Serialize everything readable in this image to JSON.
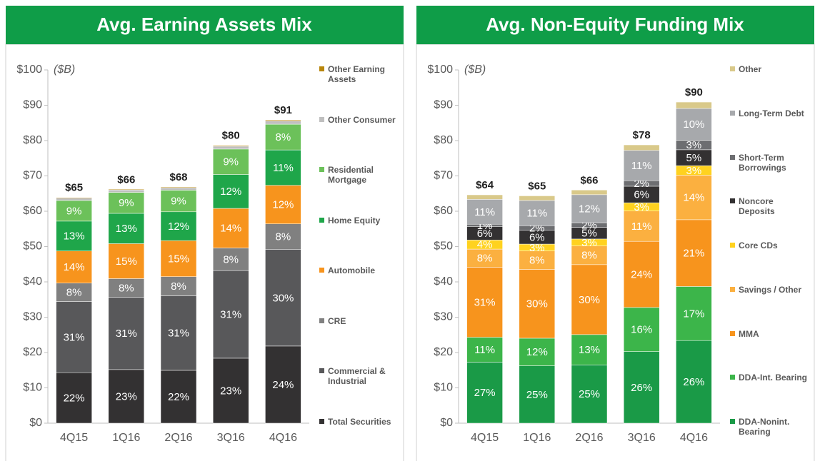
{
  "chart_data": [
    {
      "type": "bar",
      "stacked": true,
      "title": "Avg. Earning Assets Mix",
      "unit_label": "($B)",
      "categories": [
        "4Q15",
        "1Q16",
        "2Q16",
        "3Q16",
        "4Q16"
      ],
      "ylim": [
        0,
        100
      ],
      "yticks": [
        {
          "value": 0,
          "label": "$0"
        },
        {
          "value": 10,
          "label": "$10"
        },
        {
          "value": 20,
          "label": "$20"
        },
        {
          "value": 30,
          "label": "$30"
        },
        {
          "value": 40,
          "label": "$40"
        },
        {
          "value": 50,
          "label": "$50"
        },
        {
          "value": 60,
          "label": "$60"
        },
        {
          "value": 70,
          "label": "$70"
        },
        {
          "value": 80,
          "label": "$80"
        },
        {
          "value": 90,
          "label": "$90"
        },
        {
          "value": 100,
          "label": "$100"
        }
      ],
      "totals": {
        "values": [
          65,
          66,
          68,
          80,
          91
        ],
        "value_labels": [
          "$65",
          "$66",
          "$68",
          "$80",
          "$91"
        ]
      },
      "series": [
        {
          "name": "Total Securities",
          "color": "#333132",
          "values": [
            22,
            23,
            22,
            23,
            24
          ],
          "value_labels": [
            "22%",
            "23%",
            "22%",
            "23%",
            "24%"
          ]
        },
        {
          "name": "Commercial & Industrial",
          "color": "#58585a",
          "values": [
            31,
            31,
            31,
            31,
            30
          ],
          "value_labels": [
            "31%",
            "31%",
            "31%",
            "31%",
            "30%"
          ]
        },
        {
          "name": "CRE",
          "color": "#808080",
          "values": [
            8,
            8,
            8,
            8,
            8
          ],
          "value_labels": [
            "8%",
            "8%",
            "8%",
            "8%",
            "8%"
          ]
        },
        {
          "name": "Automobile",
          "color": "#f7941d",
          "values": [
            14,
            15,
            15,
            14,
            12
          ],
          "value_labels": [
            "14%",
            "15%",
            "15%",
            "14%",
            "12%"
          ]
        },
        {
          "name": "Home Equity",
          "color": "#1fa64a",
          "values": [
            13,
            13,
            12,
            12,
            11
          ],
          "value_labels": [
            "13%",
            "13%",
            "12%",
            "12%",
            "11%"
          ]
        },
        {
          "name": "Residential Mortgage",
          "color": "#6cc15a",
          "values": [
            9,
            9,
            9,
            9,
            8
          ],
          "value_labels": [
            "9%",
            "9%",
            "9%",
            "9%",
            "8%"
          ]
        },
        {
          "name": "Other Consumer",
          "color": "#bfbfbf",
          "values": [
            1,
            1,
            1,
            1,
            1
          ]
        },
        {
          "name": "Other Earning Assets",
          "color": "#b8860b",
          "values": [
            0.3,
            0.3,
            0.3,
            0.3,
            0.3
          ]
        }
      ]
    },
    {
      "type": "bar",
      "stacked": true,
      "title": "Avg. Non-Equity Funding Mix",
      "unit_label": "($B)",
      "categories": [
        "4Q15",
        "1Q16",
        "2Q16",
        "3Q16",
        "4Q16"
      ],
      "ylim": [
        0,
        100
      ],
      "yticks": [
        {
          "value": 0,
          "label": "$0"
        },
        {
          "value": 10,
          "label": "$10"
        },
        {
          "value": 20,
          "label": "$20"
        },
        {
          "value": 30,
          "label": "$30"
        },
        {
          "value": 40,
          "label": "$40"
        },
        {
          "value": 50,
          "label": "$50"
        },
        {
          "value": 60,
          "label": "$60"
        },
        {
          "value": 70,
          "label": "$70"
        },
        {
          "value": 80,
          "label": "$80"
        },
        {
          "value": 90,
          "label": "$90"
        },
        {
          "value": 100,
          "label": "$100"
        }
      ],
      "totals": {
        "values": [
          64,
          65,
          66,
          78,
          90
        ],
        "value_labels": [
          "$64",
          "$65",
          "$66",
          "$78",
          "$90"
        ]
      },
      "series": [
        {
          "name": "DDA-Nonint. Bearing",
          "color": "#1a9a47",
          "values": [
            27,
            25,
            25,
            26,
            26
          ],
          "value_labels": [
            "27%",
            "25%",
            "25%",
            "26%",
            "26%"
          ]
        },
        {
          "name": "DDA-Int. Bearing",
          "color": "#3cb54a",
          "values": [
            11,
            12,
            13,
            16,
            17
          ],
          "value_labels": [
            "11%",
            "12%",
            "13%",
            "16%",
            "17%"
          ]
        },
        {
          "name": "MMA",
          "color": "#f7941d",
          "values": [
            31,
            30,
            30,
            24,
            21
          ],
          "value_labels": [
            "31%",
            "30%",
            "30%",
            "24%",
            "21%"
          ]
        },
        {
          "name": "Savings / Other",
          "color": "#fbb040",
          "values": [
            8,
            8,
            8,
            11,
            14
          ],
          "value_labels": [
            "8%",
            "8%",
            "8%",
            "11%",
            "14%"
          ]
        },
        {
          "name": "Core CDs",
          "color": "#ffd21f",
          "values": [
            4,
            3,
            3,
            3,
            3
          ],
          "value_labels": [
            "4%",
            "3%",
            "3%",
            "3%",
            "3%"
          ]
        },
        {
          "name": "Noncore Deposits",
          "color": "#333132",
          "values": [
            6,
            6,
            5,
            6,
            5
          ],
          "value_labels": [
            "6%",
            "6%",
            "5%",
            "6%",
            "5%"
          ]
        },
        {
          "name": "Short-Term Borrowings",
          "color": "#6d6e71",
          "values": [
            1,
            2,
            2,
            2,
            3
          ],
          "value_labels": [
            "1%",
            "2%",
            "2%",
            "2%",
            "3%"
          ]
        },
        {
          "name": "Long-Term Debt",
          "color": "#a7a9ac",
          "values": [
            11,
            11,
            12,
            11,
            10
          ],
          "value_labels": [
            "11%",
            "11%",
            "12%",
            "11%",
            "10%"
          ]
        },
        {
          "name": "Other",
          "color": "#d9c98a",
          "values": [
            2,
            2,
            2,
            2,
            2
          ]
        }
      ]
    }
  ]
}
